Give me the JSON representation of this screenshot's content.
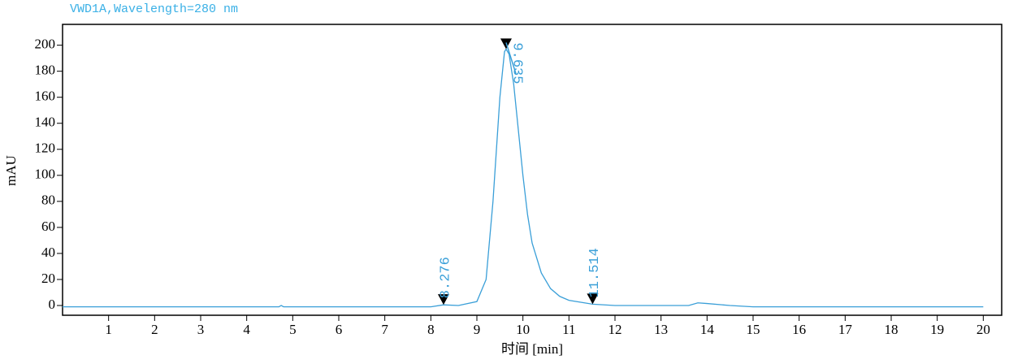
{
  "chart_data": {
    "type": "line",
    "title": "VWD1A,Wavelength=280 nm",
    "y_label": "mAU",
    "x_label": "时间 [min]",
    "xlim": [
      0,
      20.4
    ],
    "ylim": [
      -7.5,
      216
    ],
    "xticks": [
      1,
      2,
      3,
      4,
      5,
      6,
      7,
      8,
      9,
      10,
      11,
      12,
      13,
      14,
      15,
      16,
      17,
      18,
      19,
      20
    ],
    "yticks": [
      0,
      20,
      40,
      60,
      80,
      100,
      120,
      140,
      160,
      180,
      200
    ],
    "color": "#3a9fd8",
    "x": [
      0,
      4.7,
      4.75,
      4.8,
      8,
      8.276,
      8.6,
      9,
      9.2,
      9.35,
      9.5,
      9.6,
      9.635,
      9.7,
      9.8,
      9.9,
      10,
      10.1,
      10.2,
      10.4,
      10.6,
      10.8,
      11,
      11.514,
      12,
      13.6,
      13.8,
      14,
      14.5,
      15,
      20
    ],
    "values": [
      -1,
      -1,
      0,
      -1,
      -1,
      0.5,
      0,
      3,
      20,
      80,
      160,
      195,
      197,
      193,
      170,
      135,
      100,
      70,
      48,
      25,
      13,
      7,
      4,
      1,
      0,
      0,
      2,
      1.5,
      0,
      -1,
      -1
    ],
    "peaks": [
      8.276,
      9.635,
      11.514
    ],
    "peak_values": [
      0.5,
      197,
      1
    ]
  }
}
